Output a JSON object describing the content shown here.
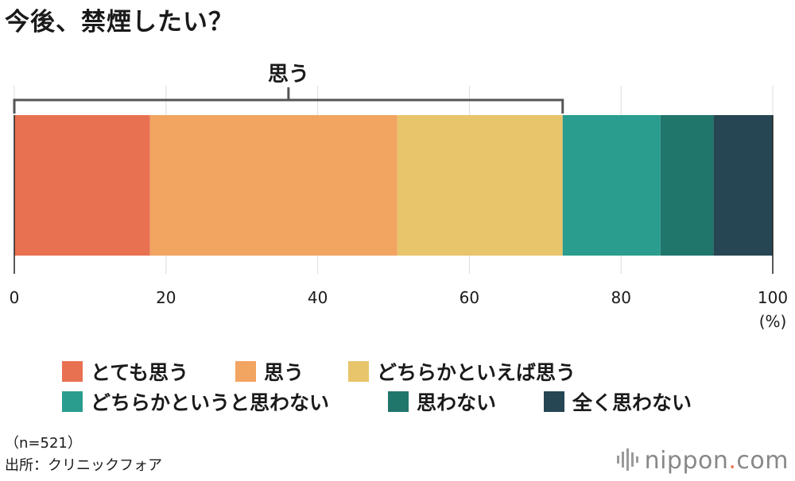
{
  "title": "今後、禁煙したい？",
  "chart_data": {
    "type": "stacked-bar",
    "orientation": "horizontal",
    "xlim": [
      0,
      100
    ],
    "x_ticks": [
      0,
      20,
      40,
      60,
      80,
      100
    ],
    "unit_label": "(%)",
    "grid": true,
    "bracket": {
      "label": "思う",
      "from": 0,
      "to": 72.3
    },
    "series": [
      {
        "name": "とても思う",
        "value": 17.9,
        "color": "#E87151"
      },
      {
        "name": "思う",
        "value": 32.6,
        "color": "#F2A461"
      },
      {
        "name": "どちらかといえば思う",
        "value": 21.8,
        "color": "#E8C46B"
      },
      {
        "name": "どちらかというと思わない",
        "value": 12.9,
        "color": "#2A9D8F"
      },
      {
        "name": "思わない",
        "value": 7.0,
        "color": "#21766C"
      },
      {
        "name": "全く思わない",
        "value": 7.8,
        "color": "#264653"
      }
    ]
  },
  "legend": {
    "rows": [
      [
        {
          "label": "とても思う",
          "color": "#E87151"
        },
        {
          "label": "思う",
          "color": "#F2A461"
        },
        {
          "label": "どちらかといえば思う",
          "color": "#E8C46B"
        }
      ],
      [
        {
          "label": "どちらかというと思わない",
          "color": "#2A9D8F"
        },
        {
          "label": "思わない",
          "color": "#21766C"
        },
        {
          "label": "全く思わない",
          "color": "#264653"
        }
      ]
    ]
  },
  "notes": {
    "n": "（n=521）",
    "source": "出所：クリニックフォア"
  },
  "brand": {
    "name": "nippon",
    "suffix": ".com",
    "icon": "sound-wave-icon",
    "dot_color": "#E87151"
  }
}
